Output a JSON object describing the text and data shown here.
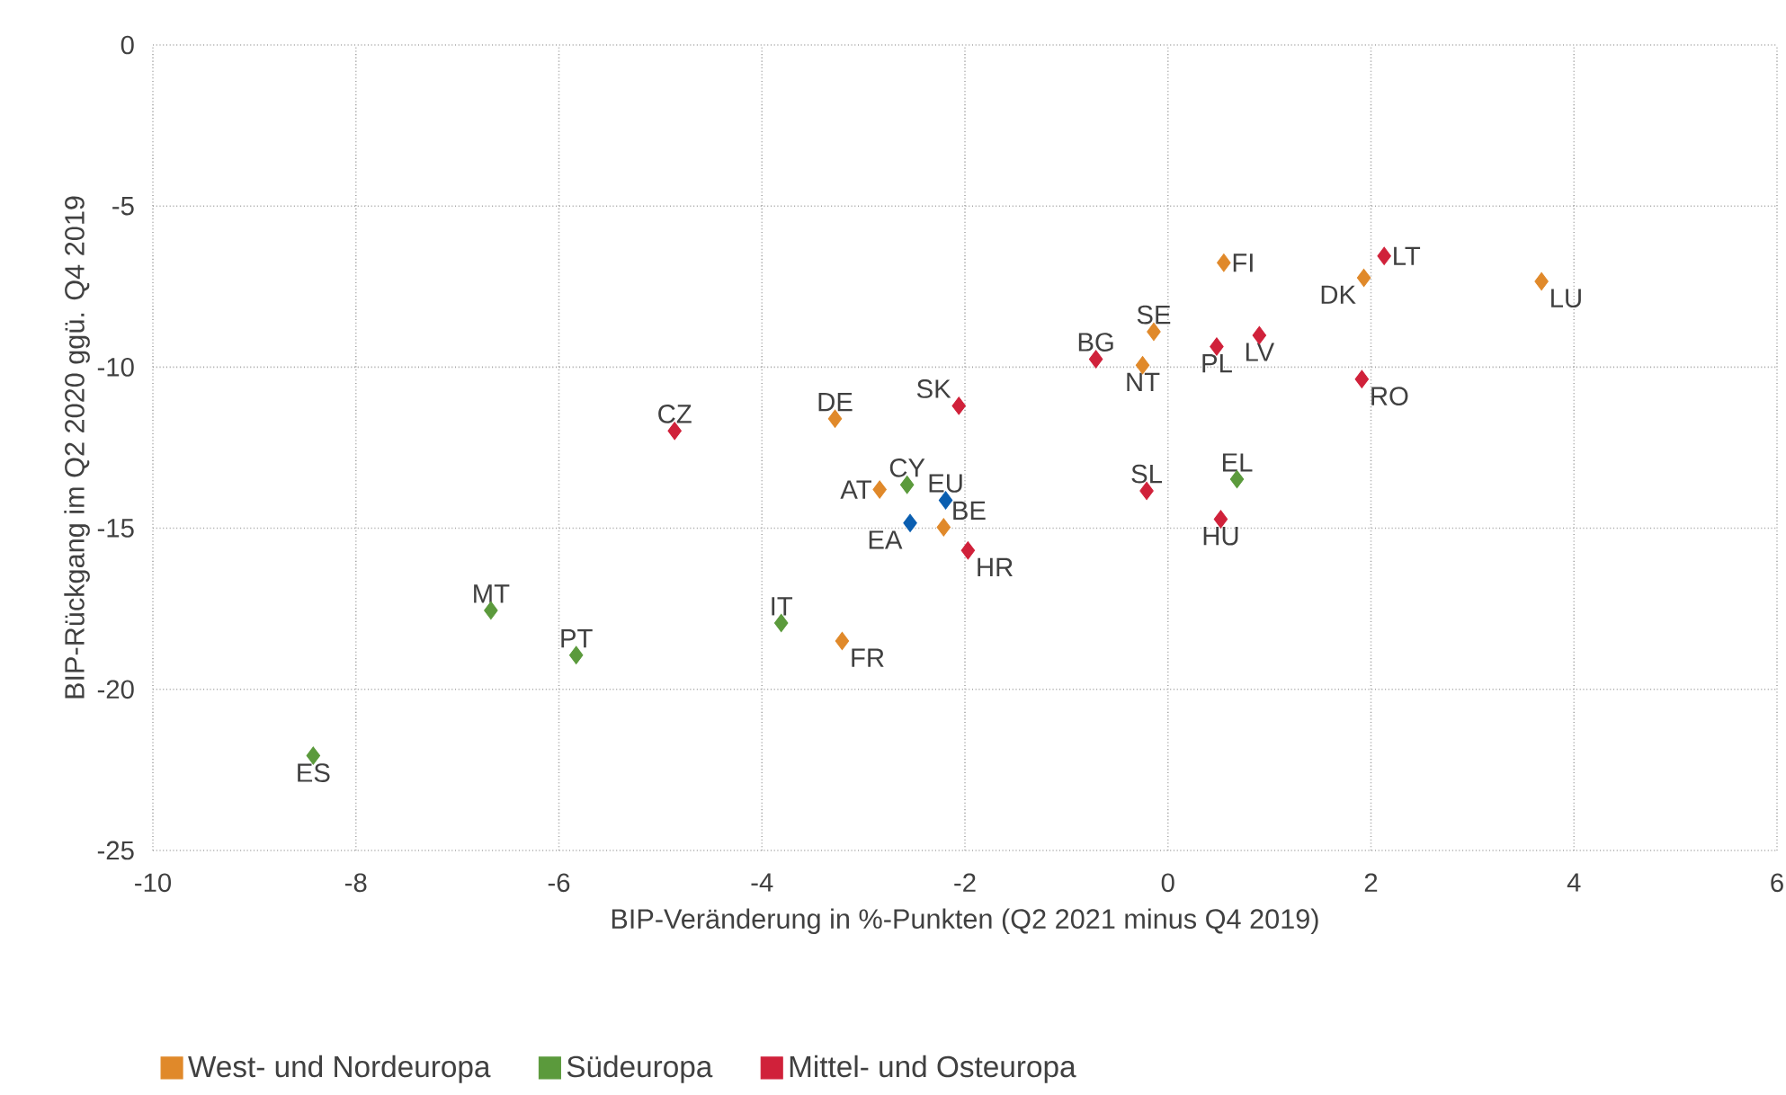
{
  "chart_data": {
    "type": "scatter",
    "xlabel": "BIP-Veränderung in %-Punkten (Q2 2021 minus Q4 2019)",
    "ylabel": "BIP-Rückgang im Q2 2020 ggü. Q4 2019",
    "xlim": [
      -10,
      6
    ],
    "xticks": [
      -10,
      -8,
      -6,
      -4,
      -2,
      0,
      2,
      4,
      6
    ],
    "ylim": [
      -25,
      0
    ],
    "yticks": [
      -25,
      -20,
      -15,
      -10,
      -5,
      0
    ],
    "grid": true,
    "legend": "bottom",
    "marker": "diamond",
    "series": [
      {
        "name": "West- und Nordeuropa",
        "color": "#e0892a",
        "x": [
          -3.21,
          -3.28,
          -2.84,
          -2.21,
          -0.14,
          -0.25,
          0.55,
          1.93,
          3.68
        ],
        "values": [
          -18.5,
          -11.6,
          -13.8,
          -14.97,
          -8.9,
          -9.94,
          -6.76,
          -7.23,
          -7.34
        ]
      },
      {
        "name": "Südeuropa",
        "color": "#5b9a3c",
        "x": [
          -8.42,
          -6.67,
          -5.83,
          -3.81,
          -2.57,
          0.68
        ],
        "values": [
          -22.06,
          -17.55,
          -18.94,
          -17.94,
          -13.65,
          -13.48
        ]
      },
      {
        "name": "Mittel- und Osteuropa",
        "color": "#d0213a",
        "x": [
          -4.86,
          -2.06,
          -1.97,
          -0.71,
          -0.21,
          0.48,
          0.9,
          0.52,
          2.13,
          1.91
        ],
        "values": [
          -11.98,
          -11.2,
          -15.69,
          -9.75,
          -13.84,
          -9.36,
          -9.01,
          -14.72,
          -6.55,
          -10.37
        ]
      },
      {
        "color": "#0a5eb0",
        "x": [
          -2.19,
          -2.54
        ],
        "values": [
          -14.13,
          -14.84
        ]
      }
    ],
    "annotations": [
      {
        "text": "ES",
        "x": -8.42,
        "y": -22.06
      },
      {
        "text": "MT",
        "x": -6.67,
        "y": -17.55
      },
      {
        "text": "PT",
        "x": -5.83,
        "y": -18.94
      },
      {
        "text": "IT",
        "x": -3.81,
        "y": -17.94
      },
      {
        "text": "FR",
        "x": -3.21,
        "y": -18.5
      },
      {
        "text": "CZ",
        "x": -4.86,
        "y": -11.98
      },
      {
        "text": "DE",
        "x": -3.28,
        "y": -11.6
      },
      {
        "text": "AT",
        "x": -2.84,
        "y": -13.8
      },
      {
        "text": "CY",
        "x": -2.57,
        "y": -13.65
      },
      {
        "text": "EU",
        "x": -2.19,
        "y": -14.13
      },
      {
        "text": "EA",
        "x": -2.54,
        "y": -14.84
      },
      {
        "text": "BE",
        "x": -2.21,
        "y": -14.97
      },
      {
        "text": "HR",
        "x": -1.97,
        "y": -15.69
      },
      {
        "text": "SK",
        "x": -2.06,
        "y": -11.2
      },
      {
        "text": "BG",
        "x": -0.71,
        "y": -9.75
      },
      {
        "text": "SE",
        "x": -0.14,
        "y": -8.9
      },
      {
        "text": "NT",
        "x": -0.25,
        "y": -9.94
      },
      {
        "text": "SL",
        "x": -0.21,
        "y": -13.84
      },
      {
        "text": "FI",
        "x": 0.55,
        "y": -6.76
      },
      {
        "text": "PL",
        "x": 0.48,
        "y": -9.36
      },
      {
        "text": "LV",
        "x": 0.9,
        "y": -9.01
      },
      {
        "text": "HU",
        "x": 0.52,
        "y": -14.72
      },
      {
        "text": "EL",
        "x": 0.68,
        "y": -13.48
      },
      {
        "text": "DK",
        "x": 1.93,
        "y": -7.23
      },
      {
        "text": "LT",
        "x": 2.13,
        "y": -6.55
      },
      {
        "text": "RO",
        "x": 1.91,
        "y": -10.37
      },
      {
        "text": "LU",
        "x": 3.68,
        "y": -7.34
      }
    ]
  }
}
